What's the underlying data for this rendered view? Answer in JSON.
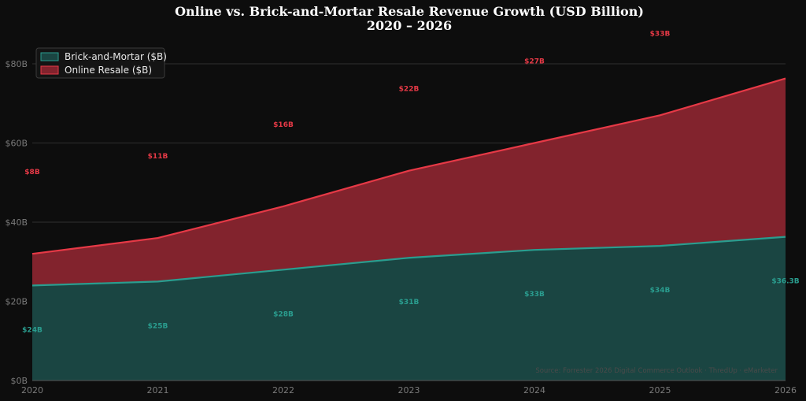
{
  "chart_data": {
    "type": "area",
    "title": "Online vs. Brick-and-Mortar Resale Revenue Growth (USD Billion)",
    "subtitle": "2020 – 2026",
    "x": [
      "2020",
      "2021",
      "2022",
      "2023",
      "2024",
      "2025",
      "2026"
    ],
    "ylim": [
      0,
      80
    ],
    "yticks": [
      0,
      20,
      40,
      60,
      80
    ],
    "ytick_labels": [
      "$0B",
      "$20B",
      "$40B",
      "$60B",
      "$80B"
    ],
    "stacked": true,
    "grid": true,
    "legend_position": "top-left",
    "series": [
      {
        "name": "Brick-and-Mortar ($B)",
        "values": [
          24,
          25,
          28,
          31,
          33,
          34,
          36.3
        ],
        "labels": [
          "$24B",
          "$25B",
          "$28B",
          "$31B",
          "$33B",
          "$34B",
          "$36.3B"
        ],
        "line_color": "#2a9d8f",
        "fill_color": "#1a4542"
      },
      {
        "name": "Online Resale ($B)",
        "values": [
          8,
          11,
          16,
          22,
          27,
          33,
          40
        ],
        "labels": [
          "$8B",
          "$11B",
          "$16B",
          "$22B",
          "$27B",
          "$33B",
          ""
        ],
        "line_color": "#e63946",
        "fill_color": "#82232d"
      }
    ],
    "source": "Source: Forrester 2026 Digital Commerce Outlook · ThredUp · eMarketer"
  }
}
